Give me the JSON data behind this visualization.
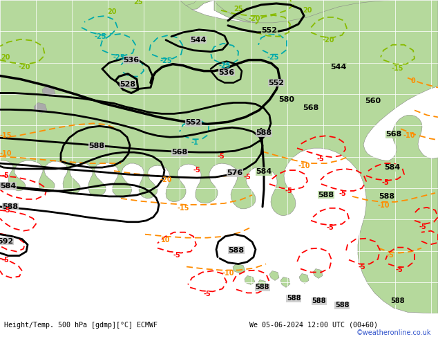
{
  "bg_ocean": "#c8c8c8",
  "bg_land_green": "#b5d99c",
  "bg_land_gray": "#a8a8a8",
  "grid_color": "#ffffff",
  "z500_color": "#000000",
  "temp_orange": "#ff8c00",
  "temp_red": "#ff0000",
  "temp_cyan": "#00aaaa",
  "temp_ygreen": "#88bb00",
  "bottom_bg": "#d8d8d8",
  "watermark_color": "#3355cc",
  "fig_width": 6.34,
  "fig_height": 4.9,
  "dpi": 100,
  "bottom_label": "Height/Temp. 500 hPa [gdmp][°C] ECMWF",
  "right_label": "We 05-06-2024 12:00 UTC (00+60)",
  "watermark": "©weatheronline.co.uk"
}
